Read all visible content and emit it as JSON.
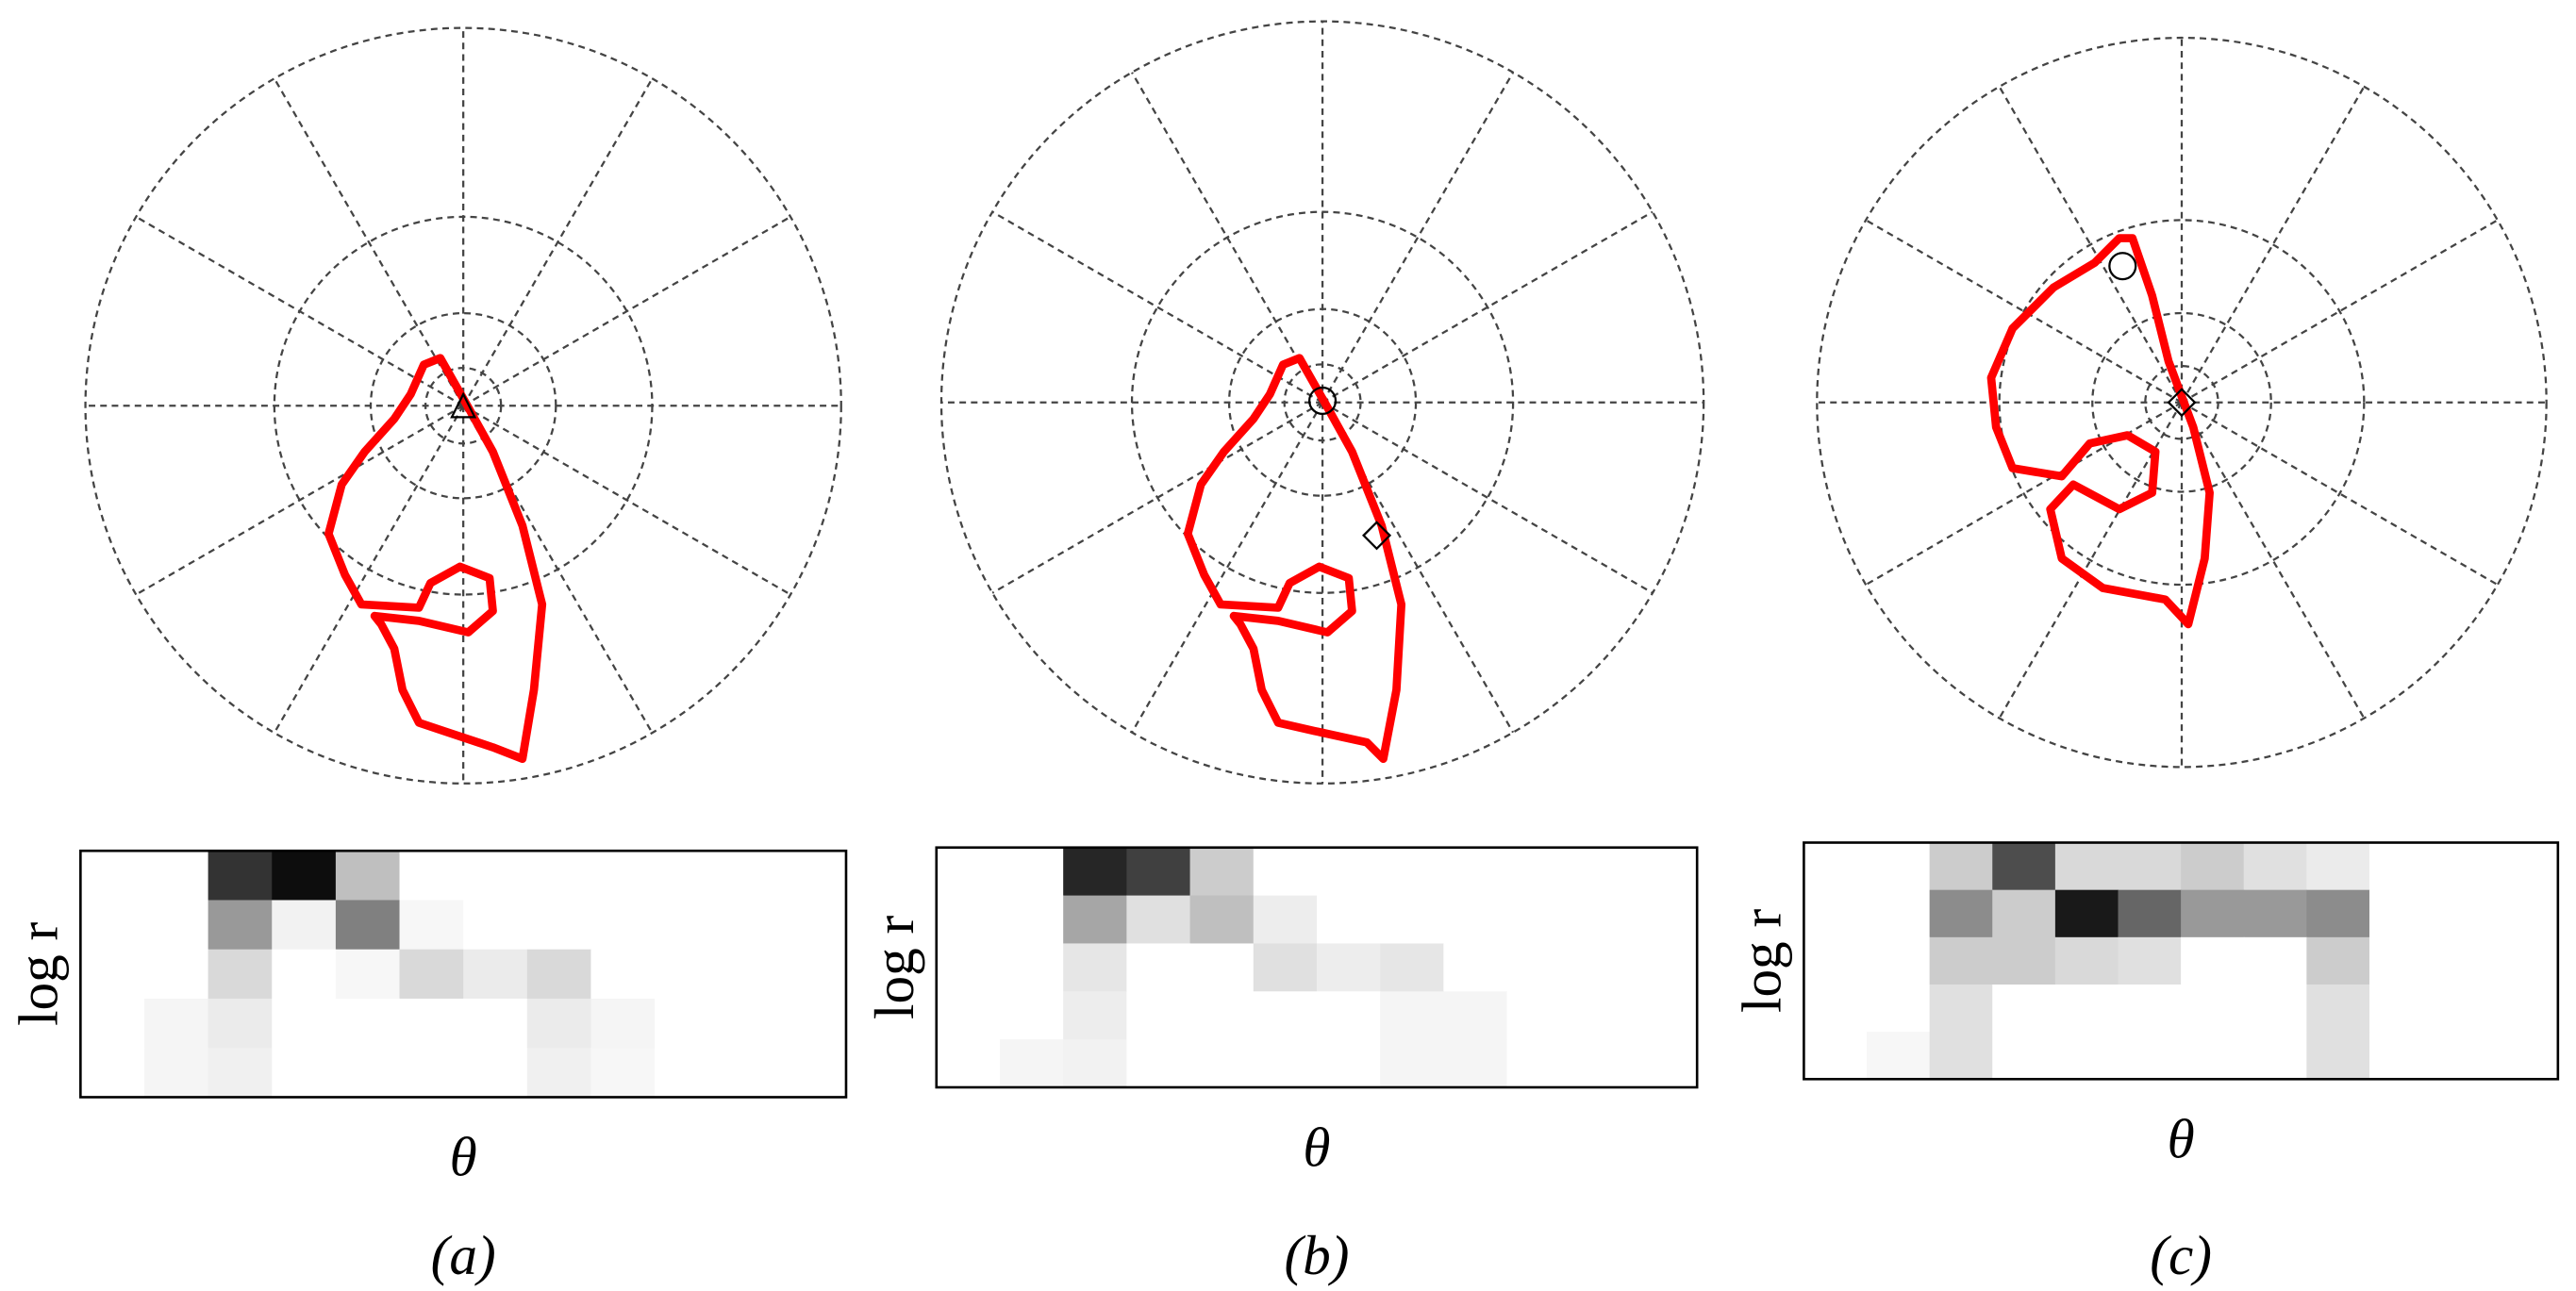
{
  "panels": [
    {
      "label": "(a)",
      "y_label": "log r",
      "x_label": "θ",
      "histogram": [
        [
          0,
          0,
          0.8,
          0.95,
          0.25,
          0,
          0,
          0,
          0,
          0,
          0,
          0
        ],
        [
          0,
          0,
          0.4,
          0.05,
          0.5,
          0.03,
          0,
          0,
          0,
          0,
          0,
          0
        ],
        [
          0,
          0,
          0.15,
          0,
          0.03,
          0.15,
          0.08,
          0.15,
          0,
          0,
          0,
          0
        ],
        [
          0,
          0.04,
          0.08,
          0,
          0,
          0,
          0,
          0.08,
          0.04,
          0,
          0,
          0
        ],
        [
          0,
          0.04,
          0.06,
          0,
          0,
          0,
          0,
          0.06,
          0.03,
          0,
          0,
          0
        ]
      ]
    },
    {
      "label": "(b)",
      "y_label": "log r",
      "x_label": "θ",
      "histogram": [
        [
          0,
          0,
          0.85,
          0.75,
          0.2,
          0,
          0,
          0,
          0,
          0,
          0,
          0
        ],
        [
          0,
          0,
          0.35,
          0.12,
          0.25,
          0.07,
          0,
          0,
          0,
          0,
          0,
          0
        ],
        [
          0,
          0,
          0.1,
          0,
          0,
          0.12,
          0.07,
          0.1,
          0,
          0,
          0,
          0
        ],
        [
          0,
          0,
          0.07,
          0,
          0,
          0,
          0,
          0.04,
          0.04,
          0,
          0,
          0
        ],
        [
          0,
          0.04,
          0.05,
          0,
          0,
          0,
          0,
          0.04,
          0.04,
          0,
          0,
          0
        ]
      ]
    },
    {
      "label": "(c)",
      "y_label": "log r",
      "x_label": "θ",
      "histogram": [
        [
          0,
          0,
          0.2,
          0.7,
          0.15,
          0.15,
          0.2,
          0.12,
          0.08,
          0,
          0,
          0
        ],
        [
          0,
          0,
          0.45,
          0.2,
          0.9,
          0.6,
          0.4,
          0.4,
          0.45,
          0,
          0,
          0
        ],
        [
          0,
          0,
          0.2,
          0.2,
          0.15,
          0.12,
          0,
          0,
          0.2,
          0,
          0,
          0
        ],
        [
          0,
          0,
          0.12,
          0,
          0,
          0,
          0,
          0,
          0.12,
          0,
          0,
          0
        ],
        [
          0,
          0.03,
          0.12,
          0,
          0,
          0,
          0,
          0,
          0.12,
          0,
          0,
          0
        ]
      ]
    }
  ]
}
